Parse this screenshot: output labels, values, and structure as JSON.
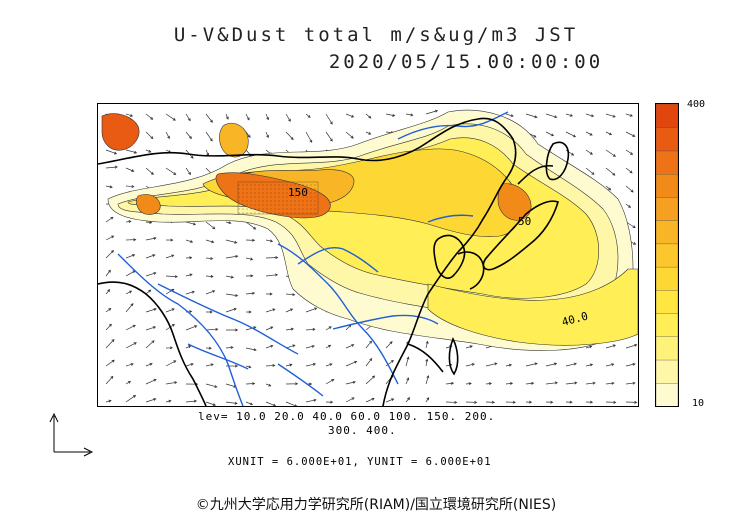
{
  "title": {
    "line1": "U-V&Dust total m/s&ug/m3 JST",
    "line2": "2020/05/15.00:00:00"
  },
  "colorbar": {
    "max_label": "400",
    "min_label": "10",
    "colors": [
      "#fffbd0",
      "#fff7a8",
      "#fff27a",
      "#ffee55",
      "#ffe640",
      "#fdd835",
      "#fbc72c",
      "#f8b526",
      "#f5a020",
      "#f28a1a",
      "#ee7216",
      "#e95a12",
      "#e2460f"
    ]
  },
  "contour_labels": [
    "150",
    "50",
    "40.0"
  ],
  "legend": {
    "levels_line1": "lev= 10.0 20.0 40.0 60.0 100. 150. 200.",
    "levels_line2": "300. 400.",
    "units": "XUNIT = 6.000E+01, YUNIT = 6.000E+01"
  },
  "copyright": "©九州大学応用力学研究所(RIAM)/国立環境研究所(NIES)",
  "colors": {
    "coast": "#000000",
    "river": "#1f5fd8",
    "dust_high": "#e2460f",
    "dust_low": "#fffbd0"
  }
}
